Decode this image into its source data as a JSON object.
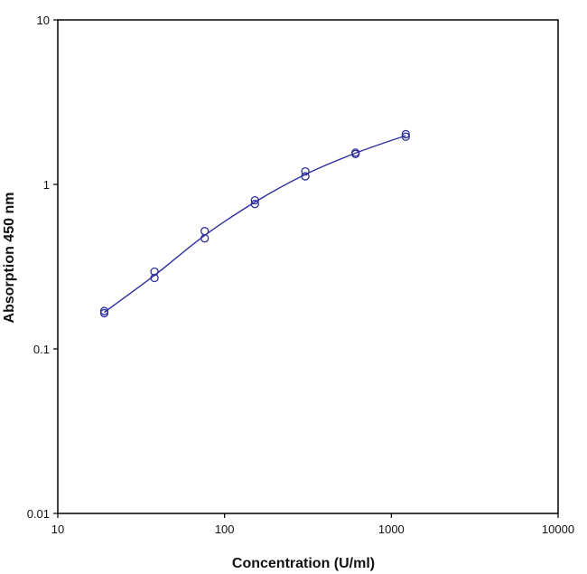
{
  "chart_data": {
    "type": "scatter",
    "title": "",
    "xlabel": "Concentration (U/ml)",
    "ylabel": "Absorption 450 nm",
    "xscale": "log",
    "yscale": "log",
    "xlim": [
      10,
      10000
    ],
    "ylim": [
      0.01,
      10
    ],
    "x_ticks": [
      "10",
      "100",
      "1000",
      "10000"
    ],
    "y_ticks": [
      "0.01",
      "0.1",
      "1",
      "10"
    ],
    "grid": false,
    "legend": "none",
    "marker": "open-circle",
    "fit_curve": true,
    "colors": {
      "series": "#2f2f9e",
      "axis": "#000000"
    },
    "series": [
      {
        "points": [
          {
            "x": 19,
            "y": 0.165
          },
          {
            "x": 19,
            "y": 0.17
          },
          {
            "x": 38,
            "y": 0.27
          },
          {
            "x": 38,
            "y": 0.295
          },
          {
            "x": 76,
            "y": 0.47
          },
          {
            "x": 76,
            "y": 0.52
          },
          {
            "x": 152,
            "y": 0.76
          },
          {
            "x": 152,
            "y": 0.8
          },
          {
            "x": 305,
            "y": 1.12
          },
          {
            "x": 305,
            "y": 1.2
          },
          {
            "x": 610,
            "y": 1.53
          },
          {
            "x": 610,
            "y": 1.56
          },
          {
            "x": 1220,
            "y": 1.95
          },
          {
            "x": 1220,
            "y": 2.02
          }
        ],
        "fit": [
          {
            "x": 19,
            "y": 0.167
          },
          {
            "x": 38,
            "y": 0.28
          },
          {
            "x": 76,
            "y": 0.49
          },
          {
            "x": 152,
            "y": 0.78
          },
          {
            "x": 305,
            "y": 1.15
          },
          {
            "x": 610,
            "y": 1.55
          },
          {
            "x": 1220,
            "y": 1.98
          }
        ]
      }
    ]
  }
}
